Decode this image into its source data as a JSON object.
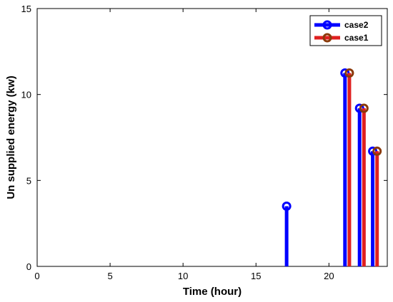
{
  "chart_data": {
    "type": "stem",
    "title": "",
    "xlabel": "Time (hour)",
    "ylabel": "Un supplied energy (kw)",
    "xlim": [
      0,
      24
    ],
    "ylim": [
      0,
      15
    ],
    "xticks": [
      0,
      5,
      10,
      15,
      20
    ],
    "yticks": [
      0,
      5,
      10,
      15
    ],
    "grid": false,
    "legend": "top-right",
    "series": [
      {
        "name": "case2",
        "color": "#0000ff",
        "points": [
          {
            "x": 17.1,
            "y": 3.5
          },
          {
            "x": 21.1,
            "y": 11.25
          },
          {
            "x": 22.1,
            "y": 9.2
          },
          {
            "x": 23.0,
            "y": 6.7
          }
        ]
      },
      {
        "name": "case1",
        "color": "#e02020",
        "marker_edge": "#8b3a0a",
        "points": [
          {
            "x": 21.4,
            "y": 11.25
          },
          {
            "x": 22.4,
            "y": 9.2
          },
          {
            "x": 23.3,
            "y": 6.7
          }
        ]
      }
    ]
  }
}
